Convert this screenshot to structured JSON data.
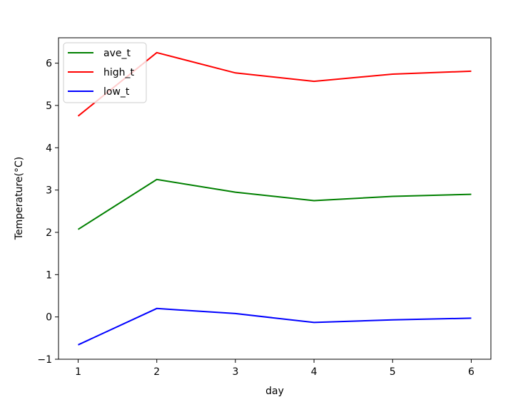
{
  "chart_data": {
    "type": "line",
    "title": "",
    "xlabel": "day",
    "ylabel": "Temperature(°C)",
    "x": [
      1,
      2,
      3,
      4,
      5,
      6
    ],
    "xticks": [
      "1",
      "2",
      "3",
      "4",
      "5",
      "6"
    ],
    "yticks": [
      "−1",
      "0",
      "1",
      "2",
      "3",
      "4",
      "5",
      "6"
    ],
    "xlim": [
      0.75,
      6.25
    ],
    "ylim": [
      -1,
      6.6
    ],
    "grid": false,
    "legend_position": "top-left",
    "series": [
      {
        "name": "ave_t",
        "color": "#008000",
        "values": [
          2.07,
          3.25,
          2.95,
          2.75,
          2.85,
          2.9
        ]
      },
      {
        "name": "high_t",
        "color": "#ff0000",
        "values": [
          4.75,
          6.25,
          5.77,
          5.57,
          5.74,
          5.81
        ]
      },
      {
        "name": "low_t",
        "color": "#0000ff",
        "values": [
          -0.66,
          0.2,
          0.08,
          -0.13,
          -0.07,
          -0.03
        ]
      }
    ]
  }
}
